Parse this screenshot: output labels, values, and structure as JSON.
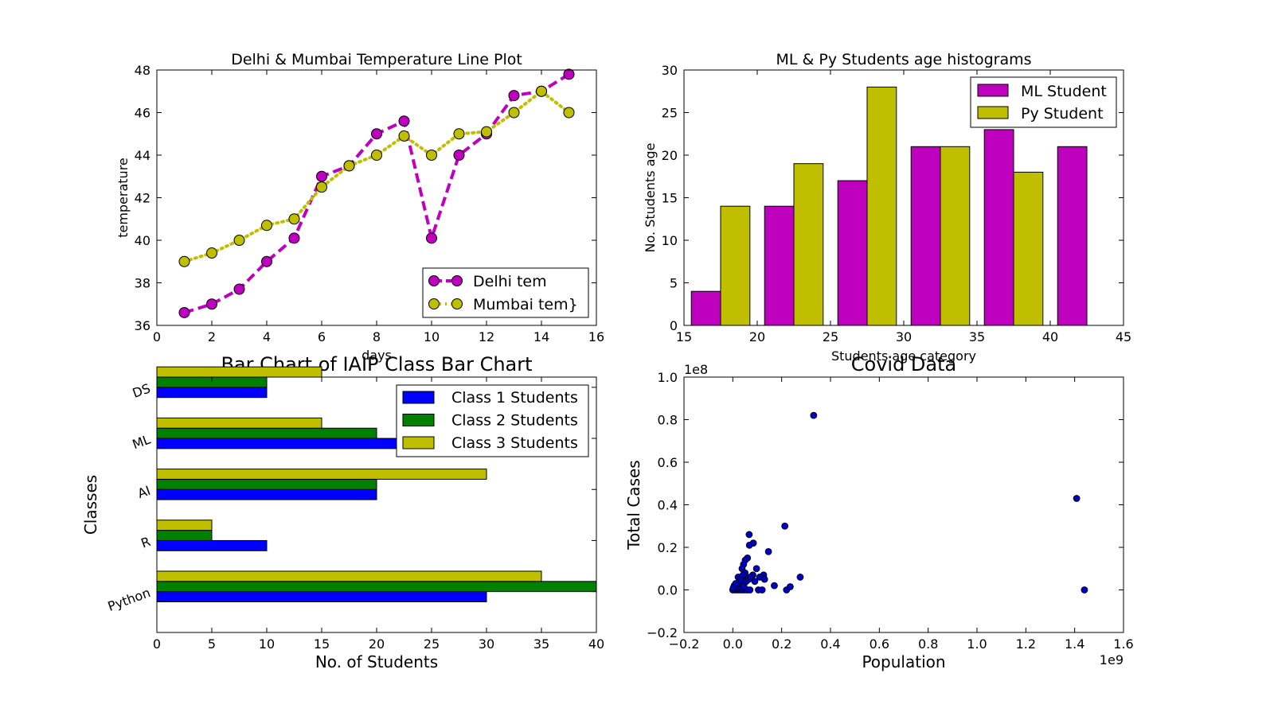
{
  "chart_data": [
    {
      "id": "temp",
      "type": "line",
      "title": "Delhi  & Mumbai Temperature Line Plot",
      "xlabel": "days",
      "ylabel": "temperature",
      "xlim": [
        0,
        16
      ],
      "ylim": [
        36,
        48
      ],
      "xticks": [
        0,
        2,
        4,
        6,
        8,
        10,
        12,
        14,
        16
      ],
      "yticks": [
        36,
        38,
        40,
        42,
        44,
        46,
        48
      ],
      "legend_position": "lower-right",
      "x": [
        1,
        2,
        3,
        4,
        5,
        6,
        7,
        8,
        9,
        10,
        11,
        12,
        13,
        14,
        15
      ],
      "series": [
        {
          "name": "Delhi tem",
          "color": "#bf00bf",
          "style": "dashed",
          "marker": "circle",
          "values": [
            36.6,
            37.0,
            37.7,
            39.0,
            40.1,
            43.0,
            43.5,
            45.0,
            45.6,
            40.1,
            44.0,
            45.0,
            46.8,
            47.0,
            47.8
          ]
        },
        {
          "name": "Mumbai tem}",
          "color": "#bfbf00",
          "style": "dotted",
          "marker": "circle",
          "values": [
            39.0,
            39.4,
            40.0,
            40.7,
            41.0,
            42.5,
            43.5,
            44.0,
            44.9,
            44.0,
            45.0,
            45.1,
            46.0,
            47.0,
            46.0
          ]
        }
      ]
    },
    {
      "id": "hist",
      "type": "bar",
      "title": "ML & Py Students age histograms",
      "xlabel": "Students age category",
      "ylabel": "No. Students age",
      "xlim": [
        15,
        45
      ],
      "ylim": [
        0,
        30
      ],
      "xticks": [
        15,
        20,
        25,
        30,
        35,
        40,
        45
      ],
      "yticks": [
        0,
        5,
        10,
        15,
        20,
        25,
        30
      ],
      "legend_position": "upper-right",
      "bin_edges": [
        15.5,
        20.5,
        25.5,
        30.5,
        35.5,
        40.5,
        45.5
      ],
      "series": [
        {
          "name": "ML Student",
          "color": "#bf00bf",
          "values": [
            4,
            14,
            17,
            21,
            23,
            21
          ]
        },
        {
          "name": "Py Student",
          "color": "#bfbf00",
          "values": [
            14,
            19,
            28,
            21,
            18,
            0
          ]
        }
      ]
    },
    {
      "id": "classes",
      "type": "bar",
      "orientation": "horizontal",
      "title": "Bar Chart of IAIP Class Bar Chart",
      "xlabel": "No. of Students",
      "ylabel": "Classes",
      "xlim": [
        0,
        40
      ],
      "xticks": [
        0,
        5,
        10,
        15,
        20,
        25,
        30,
        35,
        40
      ],
      "legend_position": "upper-right",
      "categories": [
        "Python",
        "R",
        "AI",
        "ML",
        "DS"
      ],
      "series": [
        {
          "name": "Class 1 Students",
          "color": "#0000ff",
          "values": [
            30,
            10,
            20,
            25,
            10
          ]
        },
        {
          "name": "Class 2 Students",
          "color": "#008000",
          "values": [
            40,
            5,
            20,
            20,
            10
          ]
        },
        {
          "name": "Class 3 Students",
          "color": "#bfbf00",
          "values": [
            35,
            5,
            30,
            15,
            15
          ]
        }
      ]
    },
    {
      "id": "covid",
      "type": "scatter",
      "title": "Covid Data",
      "xlabel": "Population",
      "ylabel": "Total Cases",
      "x_multiplier": "1e9",
      "y_multiplier": "1e8",
      "xlim": [
        -0.2,
        1.6
      ],
      "ylim": [
        -0.2,
        1.0
      ],
      "xticks": [
        "−0.2",
        "0.0",
        "0.2",
        "0.4",
        "0.6",
        "0.8",
        "1.0",
        "1.2",
        "1.4",
        "1.6"
      ],
      "yticks": [
        "−0.2",
        "0.0",
        "0.2",
        "0.4",
        "0.6",
        "0.8",
        "1.0"
      ],
      "color": "#0000bf",
      "points": [
        [
          0.331,
          0.82
        ],
        [
          1.408,
          0.43
        ],
        [
          1.44,
          0.0
        ],
        [
          0.213,
          0.3
        ],
        [
          0.276,
          0.06
        ],
        [
          0.146,
          0.18
        ],
        [
          0.067,
          0.26
        ],
        [
          0.084,
          0.22
        ],
        [
          0.068,
          0.21
        ],
        [
          0.06,
          0.15
        ],
        [
          0.051,
          0.14
        ],
        [
          0.044,
          0.12
        ],
        [
          0.038,
          0.1
        ],
        [
          0.097,
          0.1
        ],
        [
          0.126,
          0.07
        ],
        [
          0.11,
          0.06
        ],
        [
          0.082,
          0.07
        ],
        [
          0.064,
          0.05
        ],
        [
          0.046,
          0.06
        ],
        [
          0.037,
          0.04
        ],
        [
          0.05,
          0.08
        ],
        [
          0.017,
          0.03
        ],
        [
          0.027,
          0.04
        ],
        [
          0.011,
          0.02
        ],
        [
          0.019,
          0.01
        ],
        [
          0.008,
          0.01
        ],
        [
          0.006,
          0.02
        ],
        [
          0.01,
          0.0
        ],
        [
          0.02,
          0.0
        ],
        [
          0.03,
          0.0
        ],
        [
          0.04,
          0.0
        ],
        [
          0.05,
          0.0
        ],
        [
          0.06,
          0.0
        ],
        [
          0.07,
          0.0
        ],
        [
          0.005,
          0.005
        ],
        [
          0.015,
          0.01
        ],
        [
          0.025,
          0.02
        ],
        [
          0.035,
          0.03
        ],
        [
          0.045,
          0.02
        ],
        [
          0.055,
          0.04
        ],
        [
          0.065,
          0.05
        ],
        [
          0.09,
          0.04
        ],
        [
          0.105,
          0.0
        ],
        [
          0.12,
          0.0
        ],
        [
          0.13,
          0.05
        ],
        [
          0.17,
          0.02
        ],
        [
          0.22,
          0.0
        ],
        [
          0.235,
          0.015
        ],
        [
          0.0,
          0.0
        ],
        [
          0.002,
          0.01
        ],
        [
          0.012,
          0.03
        ],
        [
          0.022,
          0.06
        ],
        [
          0.032,
          0.05
        ],
        [
          0.042,
          0.07
        ],
        [
          0.072,
          0.06
        ]
      ]
    }
  ]
}
